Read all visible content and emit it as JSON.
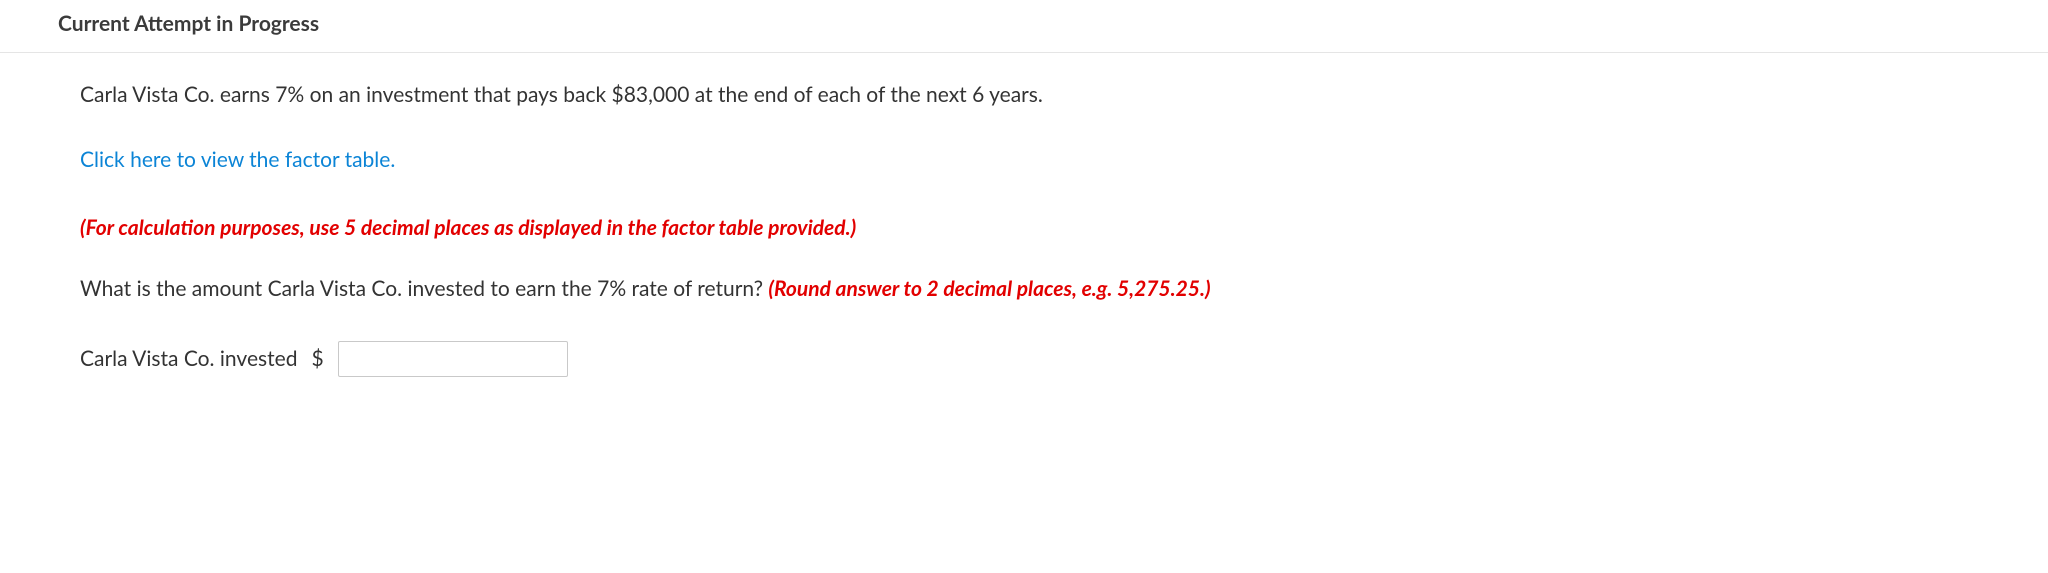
{
  "header": {
    "title": "Current Attempt in Progress"
  },
  "problem": {
    "statement": "Carla Vista Co. earns 7% on an investment that pays back $83,000 at the end of each of the next 6 years.",
    "link_text": "Click here to view the factor table.",
    "note": "(For calculation purposes, use 5 decimal places as displayed in the factor table provided.)",
    "question_plain": "What is the amount Carla Vista Co. invested to earn the 7% rate of return? ",
    "question_hint": "(Round answer to 2 decimal places, e.g. 5,275.25.)"
  },
  "answer": {
    "label": "Carla Vista Co. invested",
    "currency": "$",
    "value": ""
  },
  "colors": {
    "link": "#0b84d6",
    "error_text": "#e20000",
    "body_text": "#333333",
    "border": "#e5e5e5",
    "input_border": "#c9c9c9"
  }
}
